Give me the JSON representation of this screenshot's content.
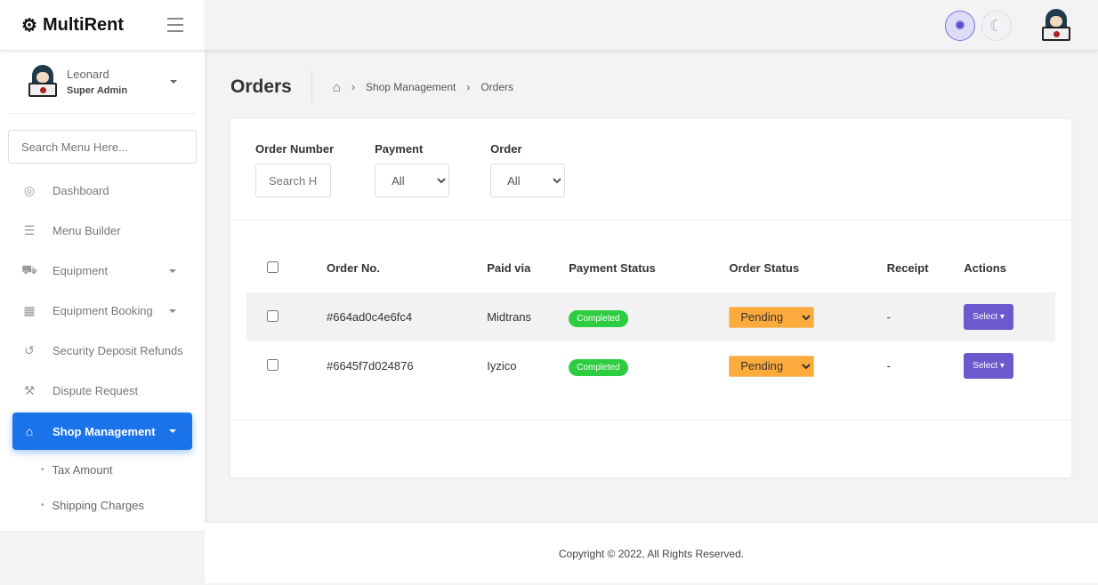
{
  "brand": {
    "name": "MultiRent"
  },
  "user": {
    "name": "Leonard",
    "role": "Super Admin"
  },
  "sidebar": {
    "search_placeholder": "Search Menu Here...",
    "items": [
      {
        "label": "Dashboard",
        "icon": "palette-icon"
      },
      {
        "label": "Menu Builder",
        "icon": "menu-icon"
      },
      {
        "label": "Equipment",
        "icon": "truck-icon"
      },
      {
        "label": "Equipment Booking",
        "icon": "calendar-icon"
      },
      {
        "label": "Security Deposit Refunds",
        "icon": "undo-icon"
      },
      {
        "label": "Dispute Request",
        "icon": "gavel-icon"
      },
      {
        "label": "Shop Management",
        "icon": "store-icon"
      }
    ],
    "subitems": [
      {
        "label": "Tax Amount"
      },
      {
        "label": "Shipping Charges"
      }
    ]
  },
  "page": {
    "title": "Orders",
    "breadcrumb": [
      "Shop Management",
      "Orders"
    ]
  },
  "filters": {
    "order_number": {
      "label": "Order Number",
      "placeholder": "Search Here"
    },
    "payment": {
      "label": "Payment",
      "value": "All"
    },
    "order": {
      "label": "Order",
      "value": "All"
    }
  },
  "table": {
    "headers": [
      "Order No.",
      "Paid via",
      "Payment Status",
      "Order Status",
      "Receipt",
      "Actions"
    ],
    "rows": [
      {
        "order_no": "#664ad0c4e6fc4",
        "paid_via": "Midtrans",
        "payment_status": "Completed",
        "order_status": "Pending",
        "receipt": "-",
        "action": "Select"
      },
      {
        "order_no": "#6645f7d024876",
        "paid_via": "Iyzico",
        "payment_status": "Completed",
        "order_status": "Pending",
        "receipt": "-",
        "action": "Select"
      }
    ]
  },
  "footer": {
    "copyright": "Copyright © 2022, All Rights Reserved."
  },
  "colors": {
    "primary": "#1a73e8",
    "completed": "#2ecc40",
    "pending": "#fdab3d",
    "action": "#6a5acd"
  }
}
